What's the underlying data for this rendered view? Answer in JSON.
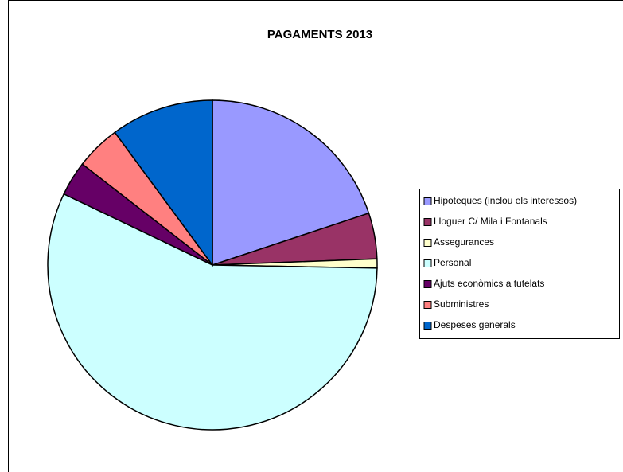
{
  "chart_data": {
    "type": "pie",
    "title": "PAGAMENTS 2013",
    "categories": [
      "Hipoteques (inclou els interessos)",
      "Lloguer C/ Mila i Fontanals",
      "Assegurances",
      "Personal",
      "Ajuts econòmics a tutelats",
      "Subministres",
      "Despeses generals"
    ],
    "values": [
      19.9,
      4.5,
      0.9,
      56.8,
      3.4,
      4.4,
      10.1
    ],
    "colors": [
      "#9999ff",
      "#993366",
      "#ffffcc",
      "#ccffff",
      "#660066",
      "#ff8080",
      "#0066cc"
    ],
    "legend": "right"
  }
}
